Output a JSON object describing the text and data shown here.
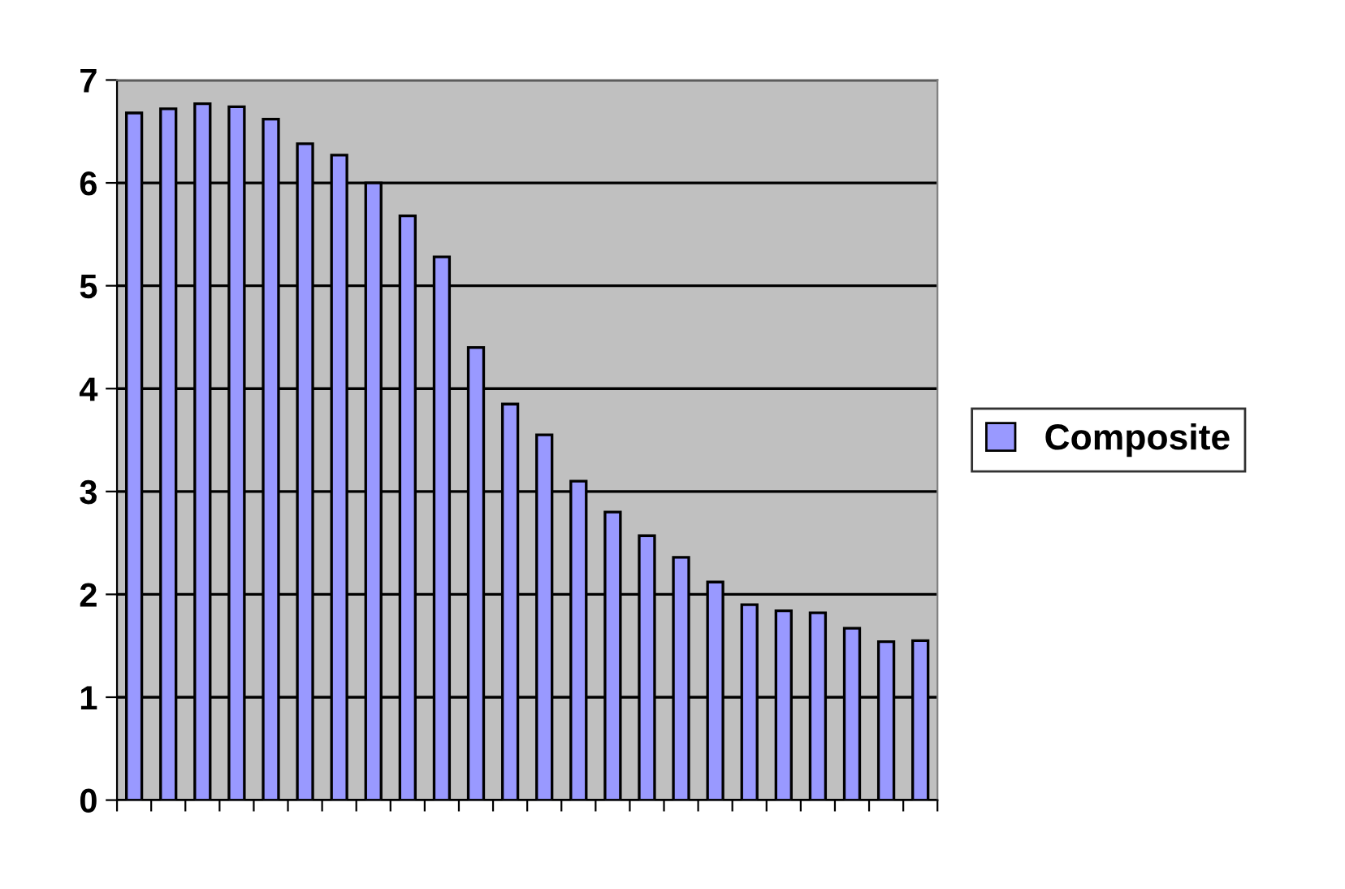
{
  "chart_data": {
    "type": "bar",
    "categories": [
      null,
      null,
      null,
      null,
      null,
      null,
      null,
      null,
      null,
      null,
      null,
      null,
      null,
      null,
      null,
      null,
      null,
      null,
      null,
      null,
      null,
      null,
      null,
      null
    ],
    "series": [
      {
        "name": "Composite",
        "color": "#9999ff",
        "values": [
          6.68,
          6.72,
          6.77,
          6.74,
          6.62,
          6.38,
          6.27,
          6.0,
          5.68,
          5.28,
          4.4,
          3.85,
          3.55,
          3.1,
          2.8,
          2.57,
          2.36,
          2.12,
          1.9,
          1.84,
          1.82,
          1.67,
          1.54,
          1.55
        ]
      }
    ],
    "ylim": [
      0,
      7
    ],
    "yticks": [
      0,
      1,
      2,
      3,
      4,
      5,
      6,
      7
    ],
    "grid": "y",
    "legend": "right",
    "tick_labels": "y"
  }
}
